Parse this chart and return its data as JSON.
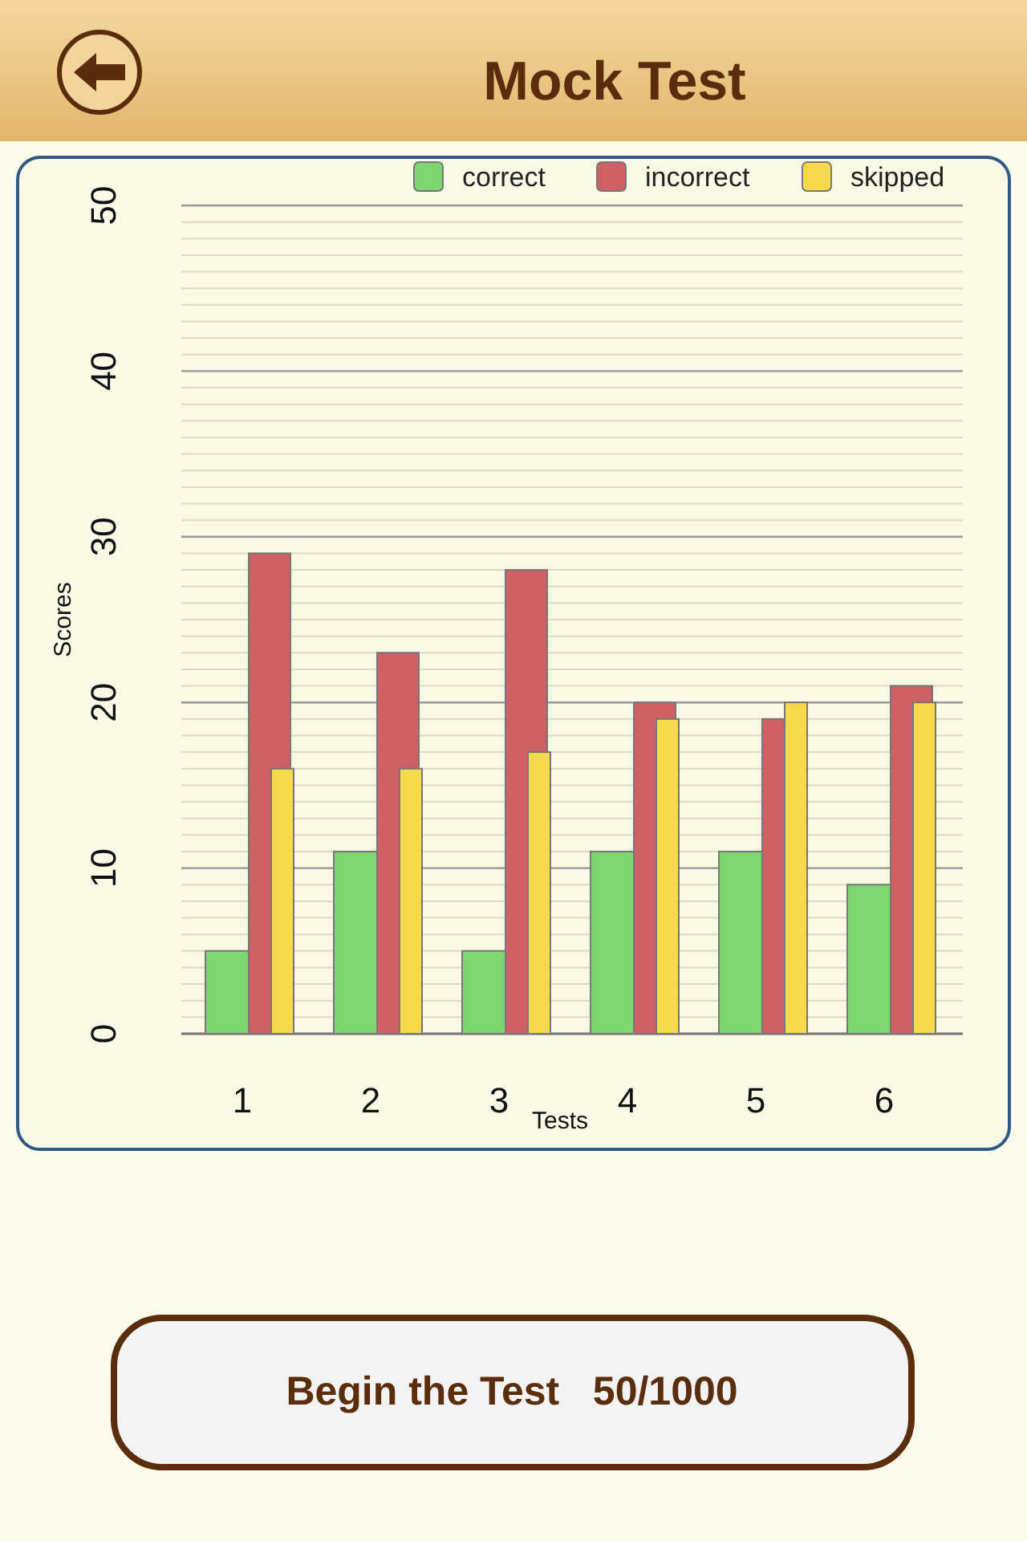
{
  "chart_data": {
    "type": "bar",
    "title": "Mock Test",
    "xlabel": "Tests",
    "ylabel": "Scores",
    "categories": [
      "1",
      "2",
      "3",
      "4",
      "5",
      "6"
    ],
    "series": [
      {
        "name": "correct",
        "color": "#7dd66f",
        "values": [
          5,
          11,
          5,
          11,
          11,
          9
        ]
      },
      {
        "name": "incorrect",
        "color": "#cf5f63",
        "values": [
          29,
          23,
          28,
          20,
          19,
          21
        ]
      },
      {
        "name": "skipped",
        "color": "#f7d94c",
        "values": [
          16,
          16,
          17,
          19,
          20,
          20
        ]
      }
    ],
    "ylim": [
      0,
      50
    ],
    "yticks": [
      0,
      10,
      20,
      30,
      40,
      50
    ],
    "grid": "y",
    "legend": "top right",
    "annotations": [
      "Begin the Test   50/1000"
    ]
  }
}
